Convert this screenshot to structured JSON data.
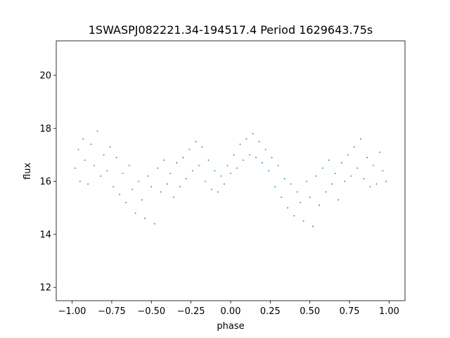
{
  "chart_data": {
    "type": "scatter",
    "title": "1SWASPJ082221.34-194517.4 Period 1629643.75s",
    "xlabel": "phase",
    "ylabel": "flux",
    "xlim": [
      -1.1,
      1.1
    ],
    "ylim": [
      11.5,
      21.3
    ],
    "xticks": [
      -1.0,
      -0.75,
      -0.5,
      -0.25,
      0.0,
      0.25,
      0.5,
      0.75,
      1.0
    ],
    "xtick_labels": [
      "−1.00",
      "−0.75",
      "−0.50",
      "−0.25",
      "0.00",
      "0.25",
      "0.50",
      "0.75",
      "1.00"
    ],
    "yticks": [
      12,
      14,
      16,
      18,
      20
    ],
    "ytick_labels": [
      "12",
      "14",
      "16",
      "18",
      "20"
    ],
    "grid": false,
    "point_color": "#1f77b4",
    "series": [
      {
        "x": [
          -0.98,
          -0.96,
          -0.95,
          -0.93,
          -0.92,
          -0.9,
          -0.88,
          -0.86,
          -0.84,
          -0.82,
          -0.8,
          -0.78,
          -0.76,
          -0.74,
          -0.72,
          -0.7,
          -0.68,
          -0.66,
          -0.64,
          -0.62,
          -0.6,
          -0.58,
          -0.56,
          -0.54,
          -0.52,
          -0.5,
          -0.48,
          -0.46,
          -0.44,
          -0.42,
          -0.4,
          -0.38,
          -0.36,
          -0.34,
          -0.32,
          -0.3,
          -0.28,
          -0.26,
          -0.24,
          -0.22,
          -0.2,
          -0.18,
          -0.16,
          -0.14,
          -0.12,
          -0.1,
          -0.08,
          -0.06,
          -0.04,
          -0.02,
          0.0,
          0.02,
          0.04,
          0.06,
          0.08,
          0.1,
          0.12,
          0.14,
          0.16,
          0.18,
          0.2,
          0.22,
          0.24,
          0.26,
          0.28,
          0.3,
          0.32,
          0.34,
          0.36,
          0.38,
          0.4,
          0.42,
          0.44,
          0.46,
          0.48,
          0.5,
          0.52,
          0.54,
          0.56,
          0.58,
          0.6,
          0.62,
          0.64,
          0.66,
          0.68,
          0.7,
          0.72,
          0.74,
          0.76,
          0.78,
          0.8,
          0.82,
          0.84,
          0.86,
          0.88,
          0.9,
          0.92,
          0.94,
          0.96,
          0.98
        ],
        "y": [
          16.5,
          17.2,
          16.0,
          17.6,
          16.8,
          15.9,
          17.4,
          16.6,
          17.9,
          16.2,
          17.0,
          16.4,
          17.3,
          15.8,
          16.9,
          15.5,
          16.3,
          15.2,
          16.6,
          15.7,
          14.8,
          16.0,
          15.3,
          14.6,
          16.2,
          15.8,
          14.4,
          16.5,
          15.6,
          16.8,
          15.9,
          16.3,
          15.4,
          16.7,
          15.8,
          16.9,
          16.1,
          17.2,
          16.4,
          17.5,
          16.6,
          17.3,
          16.0,
          16.8,
          15.7,
          16.4,
          15.6,
          16.2,
          15.9,
          16.6,
          16.3,
          17.0,
          16.5,
          17.4,
          16.8,
          17.6,
          17.0,
          17.8,
          16.9,
          17.5,
          16.7,
          17.2,
          16.4,
          16.9,
          15.8,
          16.6,
          15.4,
          16.1,
          15.0,
          15.9,
          14.7,
          15.6,
          15.2,
          14.5,
          16.0,
          15.4,
          14.3,
          16.2,
          15.1,
          16.5,
          15.6,
          16.8,
          15.9,
          16.3,
          15.3,
          16.7,
          16.0,
          17.0,
          16.2,
          17.3,
          16.5,
          17.6,
          16.1,
          16.9,
          15.8,
          16.6,
          15.9,
          17.1,
          16.4,
          16.0
        ]
      }
    ]
  }
}
